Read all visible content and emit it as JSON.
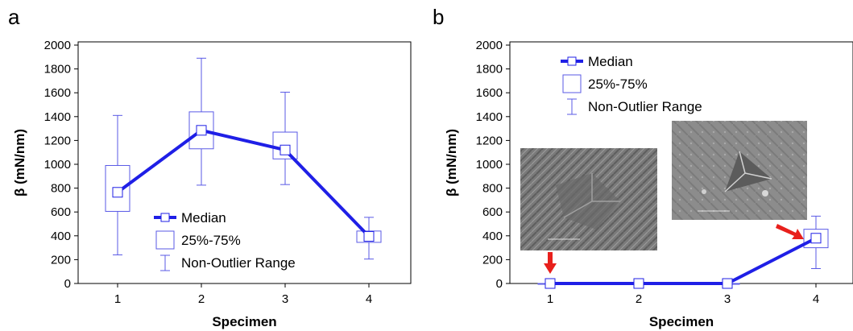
{
  "colors": {
    "series": "#1f1fe6",
    "box": "#5a5ae6",
    "arrow": "#e8201c",
    "photo_dark": "#5b5b5b",
    "photo_light": "#b4b4b4"
  },
  "chart_data": [
    {
      "type": "box",
      "panel_label": "a",
      "xlabel": "Specimen",
      "ylabel": "β  (mN/nm)",
      "categories": [
        "1",
        "2",
        "3",
        "4"
      ],
      "ylim": [
        0,
        2000
      ],
      "yticks": [
        0,
        200,
        400,
        600,
        800,
        1000,
        1200,
        1400,
        1600,
        1800,
        2000
      ],
      "grid": false,
      "legend": {
        "placement": "bottom-center",
        "entries": [
          "Median",
          "25%-75%",
          "Non-Outlier Range"
        ]
      },
      "series": [
        {
          "name": "Median",
          "median": [
            765,
            1285,
            1120,
            395
          ],
          "q1": [
            605,
            1130,
            1045,
            345
          ],
          "q3": [
            990,
            1440,
            1270,
            440
          ],
          "whisker_low": [
            240,
            825,
            830,
            205
          ],
          "whisker_high": [
            1410,
            1890,
            1605,
            555
          ]
        }
      ]
    },
    {
      "type": "box",
      "panel_label": "b",
      "xlabel": "Specimen",
      "ylabel": "β  (mN/nm)",
      "categories": [
        "1",
        "2",
        "3",
        "4"
      ],
      "ylim": [
        0,
        2000
      ],
      "yticks": [
        0,
        200,
        400,
        600,
        800,
        1000,
        1200,
        1400,
        1600,
        1800,
        2000
      ],
      "grid": false,
      "legend": {
        "placement": "top-left",
        "entries": [
          "Median",
          "25%-75%",
          "Non-Outlier Range"
        ]
      },
      "series": [
        {
          "name": "Median",
          "median": [
            0,
            0,
            0,
            380
          ],
          "q1": [
            0,
            0,
            0,
            300
          ],
          "q3": [
            0,
            0,
            0,
            455
          ],
          "whisker_low": [
            0,
            0,
            0,
            125
          ],
          "whisker_high": [
            0,
            0,
            0,
            565
          ]
        }
      ],
      "insets": [
        {
          "name": "sem-image-specimen-1",
          "points_to": "1"
        },
        {
          "name": "sem-image-specimen-4",
          "points_to": "4"
        }
      ]
    }
  ]
}
